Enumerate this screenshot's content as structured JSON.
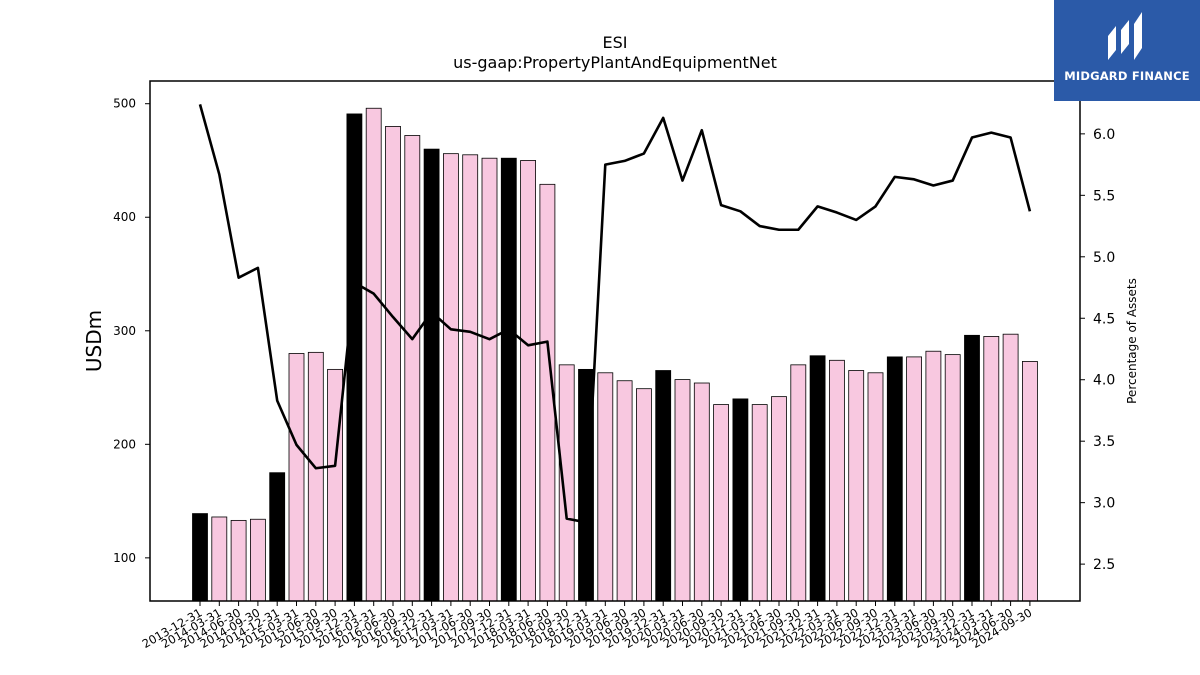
{
  "chart_data": {
    "type": "bar",
    "title": "ESI",
    "subtitle": "us-gaap:PropertyPlantAndEquipmentNet",
    "ylabel": "USDm",
    "y2label": "Percentage of Assets",
    "ylim": [
      62,
      520
    ],
    "y2lim": [
      2.2,
      6.43
    ],
    "yticks": [
      100,
      200,
      300,
      400,
      500
    ],
    "y2ticks": [
      2.5,
      3.0,
      3.5,
      4.0,
      4.5,
      5.0,
      5.5,
      6.0
    ],
    "y2tick_labels": [
      "2.5",
      "3.0",
      "3.5",
      "4.0",
      "4.5",
      "5.0",
      "5.5",
      "6.0"
    ],
    "categories": [
      "2013-12-31",
      "2014-03-31",
      "2014-06-30",
      "2014-09-30",
      "2014-12-31",
      "2015-03-31",
      "2015-06-30",
      "2015-09-30",
      "2015-12-31",
      "2016-03-31",
      "2016-06-30",
      "2016-09-30",
      "2016-12-31",
      "2017-03-31",
      "2017-06-30",
      "2017-09-30",
      "2017-12-31",
      "2018-03-31",
      "2018-06-30",
      "2018-09-30",
      "2018-12-31",
      "2019-03-31",
      "2019-06-30",
      "2019-09-30",
      "2019-12-31",
      "2020-03-31",
      "2020-06-30",
      "2020-09-30",
      "2020-12-31",
      "2021-03-31",
      "2021-06-30",
      "2021-09-30",
      "2021-12-31",
      "2022-03-31",
      "2022-06-30",
      "2022-09-30",
      "2022-12-31",
      "2023-03-31",
      "2023-06-30",
      "2023-09-30",
      "2023-12-31",
      "2024-03-31",
      "2024-06-30",
      "2024-09-30"
    ],
    "series": [
      {
        "kind": "bar",
        "values": [
          139,
          136,
          133,
          134,
          175,
          280,
          281,
          266,
          491,
          496,
          480,
          472,
          460,
          456,
          455,
          452,
          452,
          450,
          429,
          270,
          266,
          263,
          256,
          249,
          265,
          257,
          254,
          235,
          240,
          235,
          242,
          270,
          278,
          274,
          265,
          263,
          277,
          277,
          282,
          279,
          296,
          295,
          297,
          273
        ],
        "highlight_color": "#000000",
        "default_color": "#f8c8e0",
        "highlighted_periods": [
          "2013-12-31",
          "2014-12-31",
          "2015-12-31",
          "2016-12-31",
          "2017-12-31",
          "2018-12-31",
          "2019-12-31",
          "2020-12-31",
          "2021-12-31",
          "2022-12-31",
          "2023-12-31"
        ]
      },
      {
        "kind": "line",
        "axis": "right",
        "color": "#000000",
        "values": [
          6.24,
          5.67,
          4.83,
          4.91,
          3.83,
          3.47,
          3.28,
          3.3,
          4.79,
          4.7,
          4.51,
          4.33,
          4.55,
          4.41,
          4.39,
          4.33,
          4.41,
          4.28,
          4.31,
          2.87,
          2.84,
          5.75,
          5.78,
          5.84,
          6.13,
          5.62,
          6.03,
          5.42,
          5.37,
          5.25,
          5.22,
          5.22,
          5.41,
          5.36,
          5.3,
          5.41,
          5.65,
          5.63,
          5.58,
          5.62,
          5.97,
          6.01,
          5.97,
          5.37
        ]
      }
    ]
  },
  "logo": {
    "text": "MIDGARD FINANCE"
  }
}
